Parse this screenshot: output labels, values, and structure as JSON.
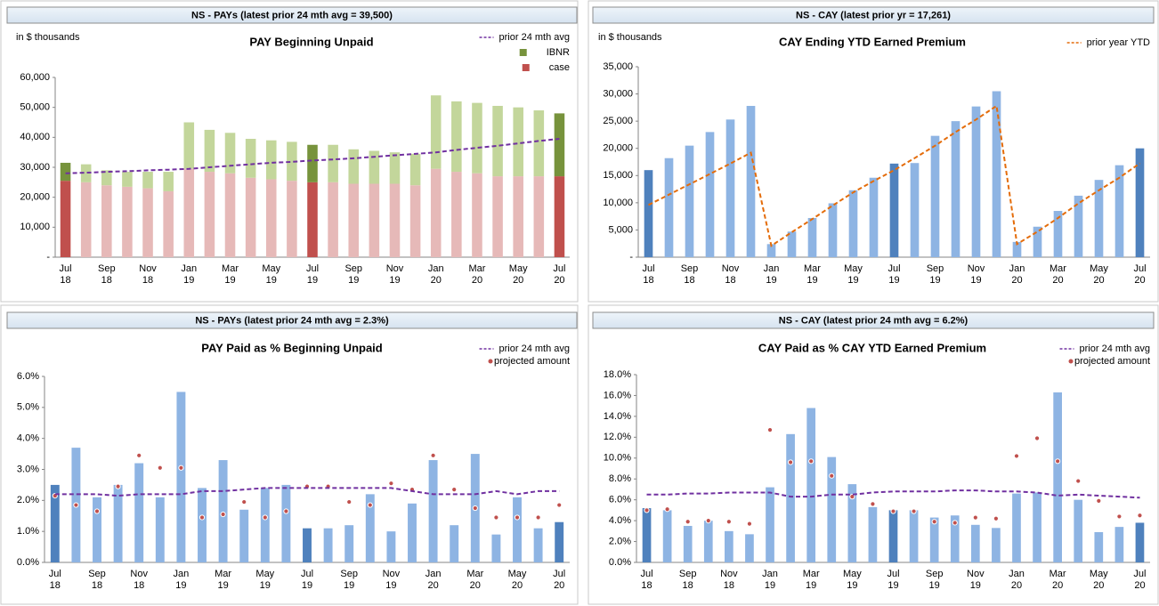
{
  "chart_data": [
    {
      "type": "bar",
      "stacked": true,
      "header": "NS - PAYs (latest prior 24 mth avg = 39,500)",
      "title": "PAY Beginning Unpaid",
      "unit_label": "in $ thousands",
      "categories": [
        "Jul 18",
        null,
        "Sep 18",
        null,
        "Nov 18",
        null,
        "Jan 19",
        null,
        "Mar 19",
        null,
        "May 19",
        null,
        "Jul 19",
        null,
        "Sep 19",
        null,
        "Nov 19",
        null,
        "Jan 20",
        null,
        "Mar 20",
        null,
        "May 20",
        null,
        "Jul 20"
      ],
      "highlight": [
        0,
        12,
        24
      ],
      "series": [
        {
          "name": "case",
          "type": "bar",
          "color": "#e6b9b8",
          "highlight_color": "#c0504d",
          "values": [
            25500,
            25000,
            24000,
            23500,
            23000,
            22000,
            29500,
            28500,
            28000,
            26500,
            26000,
            25500,
            25000,
            25000,
            24500,
            24500,
            24500,
            24000,
            29500,
            28500,
            28000,
            27000,
            27000,
            27000,
            27000
          ]
        },
        {
          "name": "IBNR",
          "type": "bar",
          "color": "#c3d69b",
          "highlight_color": "#77933c",
          "values": [
            6000,
            6000,
            5000,
            5000,
            5500,
            6500,
            15500,
            14000,
            13500,
            13000,
            13000,
            13000,
            12500,
            12500,
            11500,
            11000,
            10500,
            10500,
            24500,
            23500,
            23500,
            23500,
            23000,
            22000,
            21000
          ]
        },
        {
          "name": "prior 24 mth avg",
          "type": "line",
          "color": "#7030a0",
          "values": [
            28000,
            28200,
            28500,
            28700,
            29000,
            29200,
            29500,
            30000,
            30500,
            31000,
            31500,
            31800,
            32300,
            32600,
            33000,
            33500,
            34000,
            34500,
            35000,
            35800,
            36500,
            37200,
            38000,
            38800,
            39500
          ]
        }
      ],
      "ylim": [
        0,
        60000
      ],
      "yticks": [
        {
          "value": 0,
          "label": "-"
        },
        {
          "value": 10000,
          "label": "10,000"
        },
        {
          "value": 20000,
          "label": "20,000"
        },
        {
          "value": 30000,
          "label": "30,000"
        },
        {
          "value": 40000,
          "label": "40,000"
        },
        {
          "value": 50000,
          "label": "50,000"
        },
        {
          "value": 60000,
          "label": "60,000"
        }
      ],
      "grid": false,
      "legend": "upper right"
    },
    {
      "type": "bar",
      "header": "NS - CAY (latest prior yr = 17,261)",
      "title": "CAY Ending YTD Earned Premium",
      "unit_label": "in $ thousands",
      "categories": [
        "Jul 18",
        null,
        "Sep 18",
        null,
        "Nov 18",
        null,
        "Jan 19",
        null,
        "Mar 19",
        null,
        "May 19",
        null,
        "Jul 19",
        null,
        "Sep 19",
        null,
        "Nov 19",
        null,
        "Jan 20",
        null,
        "Mar 20",
        null,
        "May 20",
        null,
        "Jul 20"
      ],
      "highlight": [
        0,
        12,
        24
      ],
      "series": [
        {
          "type": "bar",
          "color": "#8eb4e3",
          "highlight_color": "#4f81bd",
          "values": [
            16000,
            18200,
            20500,
            23000,
            25300,
            27800,
            2400,
            4700,
            7200,
            9900,
            12300,
            14600,
            17200,
            17300,
            22300,
            25000,
            27700,
            30500,
            2800,
            5600,
            8500,
            11300,
            14200,
            16900,
            20000
          ]
        },
        {
          "name": "prior year YTD",
          "type": "line",
          "color": "#e46c0a",
          "values": [
            9600,
            11500,
            13400,
            15300,
            17200,
            19200,
            2100,
            4600,
            7000,
            9500,
            11900,
            14000,
            16000,
            18200,
            20500,
            23000,
            25300,
            27800,
            2400,
            4700,
            7200,
            9900,
            12300,
            14600,
            17261
          ]
        }
      ],
      "ylim": [
        0,
        35000
      ],
      "yticks": [
        {
          "value": 0,
          "label": "-"
        },
        {
          "value": 5000,
          "label": "5,000"
        },
        {
          "value": 10000,
          "label": "10,000"
        },
        {
          "value": 15000,
          "label": "15,000"
        },
        {
          "value": 20000,
          "label": "20,000"
        },
        {
          "value": 25000,
          "label": "25,000"
        },
        {
          "value": 30000,
          "label": "30,000"
        },
        {
          "value": 35000,
          "label": "35,000"
        }
      ],
      "grid": false,
      "legend": "upper right"
    },
    {
      "type": "bar",
      "header": "NS - PAYs (latest prior 24 mth avg = 2.3%)",
      "title": "PAY Paid as % Beginning Unpaid",
      "categories": [
        "Jul 18",
        null,
        "Sep 18",
        null,
        "Nov 18",
        null,
        "Jan 19",
        null,
        "Mar 19",
        null,
        "May 19",
        null,
        "Jul 19",
        null,
        "Sep 19",
        null,
        "Nov 19",
        null,
        "Jan 20",
        null,
        "Mar 20",
        null,
        "May 20",
        null,
        "Jul 20"
      ],
      "highlight": [
        0,
        12,
        24
      ],
      "series": [
        {
          "type": "bar",
          "color": "#8eb4e3",
          "highlight_color": "#4f81bd",
          "values": [
            2.5,
            3.7,
            2.1,
            2.5,
            3.2,
            2.1,
            5.5,
            2.4,
            3.3,
            1.7,
            2.4,
            2.5,
            1.1,
            1.1,
            1.2,
            2.2,
            1.0,
            1.9,
            3.3,
            1.2,
            3.5,
            0.9,
            2.1,
            1.1,
            1.3
          ]
        },
        {
          "name": "projected amount",
          "type": "scatter",
          "color": "#c0504d",
          "values": [
            2.15,
            1.85,
            1.65,
            2.45,
            3.45,
            3.05,
            3.05,
            1.45,
            1.55,
            1.95,
            1.45,
            1.65,
            2.45,
            2.45,
            1.95,
            1.85,
            2.55,
            2.35,
            3.45,
            2.35,
            1.75,
            1.45,
            1.45,
            1.45,
            1.85
          ]
        },
        {
          "name": "prior 24 mth avg",
          "type": "line",
          "color": "#7030a0",
          "values": [
            2.2,
            2.2,
            2.2,
            2.15,
            2.2,
            2.2,
            2.2,
            2.3,
            2.3,
            2.35,
            2.4,
            2.4,
            2.4,
            2.4,
            2.4,
            2.4,
            2.4,
            2.3,
            2.2,
            2.2,
            2.2,
            2.3,
            2.2,
            2.3,
            2.3
          ]
        }
      ],
      "ylim": [
        0,
        6
      ],
      "yticks": [
        {
          "value": 0,
          "label": "0.0%"
        },
        {
          "value": 1,
          "label": "1.0%"
        },
        {
          "value": 2,
          "label": "2.0%"
        },
        {
          "value": 3,
          "label": "3.0%"
        },
        {
          "value": 4,
          "label": "4.0%"
        },
        {
          "value": 5,
          "label": "5.0%"
        },
        {
          "value": 6,
          "label": "6.0%"
        }
      ],
      "grid": false,
      "legend": "upper right"
    },
    {
      "type": "bar",
      "header": "NS - CAY (latest prior 24 mth avg = 6.2%)",
      "title": "CAY Paid as % CAY YTD Earned Premium",
      "categories": [
        "Jul 18",
        null,
        "Sep 18",
        null,
        "Nov 18",
        null,
        "Jan 19",
        null,
        "Mar 19",
        null,
        "May 19",
        null,
        "Jul 19",
        null,
        "Sep 19",
        null,
        "Nov 19",
        null,
        "Jan 20",
        null,
        "Mar 20",
        null,
        "May 20",
        null,
        "Jul 20"
      ],
      "highlight": [
        0,
        12,
        24
      ],
      "series": [
        {
          "type": "bar",
          "color": "#8eb4e3",
          "highlight_color": "#4f81bd",
          "values": [
            5.2,
            5.0,
            3.5,
            4.0,
            3.0,
            2.7,
            7.2,
            12.3,
            14.8,
            10.1,
            7.5,
            5.3,
            5.0,
            5.0,
            4.3,
            4.5,
            3.6,
            3.3,
            6.6,
            6.7,
            16.3,
            6.0,
            2.9,
            3.4,
            3.8
          ]
        },
        {
          "name": "projected amount",
          "type": "scatter",
          "color": "#c0504d",
          "values": [
            5.0,
            5.1,
            3.9,
            4.0,
            3.9,
            3.7,
            12.7,
            9.6,
            9.7,
            8.3,
            6.3,
            5.6,
            4.9,
            4.9,
            3.9,
            3.8,
            4.3,
            4.2,
            10.2,
            11.9,
            9.7,
            7.8,
            5.9,
            4.4,
            4.5
          ]
        },
        {
          "name": "prior 24 mth avg",
          "type": "line",
          "color": "#7030a0",
          "values": [
            6.5,
            6.5,
            6.6,
            6.6,
            6.7,
            6.7,
            6.7,
            6.3,
            6.3,
            6.5,
            6.5,
            6.7,
            6.8,
            6.8,
            6.8,
            6.9,
            6.9,
            6.8,
            6.8,
            6.7,
            6.4,
            6.5,
            6.4,
            6.3,
            6.2
          ]
        }
      ],
      "ylim": [
        0,
        18
      ],
      "yticks": [
        {
          "value": 0,
          "label": "0.0%"
        },
        {
          "value": 2,
          "label": "2.0%"
        },
        {
          "value": 4,
          "label": "4.0%"
        },
        {
          "value": 6,
          "label": "6.0%"
        },
        {
          "value": 8,
          "label": "8.0%"
        },
        {
          "value": 10,
          "label": "10.0%"
        },
        {
          "value": 12,
          "label": "12.0%"
        },
        {
          "value": 14,
          "label": "14.0%"
        },
        {
          "value": 16,
          "label": "16.0%"
        },
        {
          "value": 18,
          "label": "18.0%"
        }
      ],
      "grid": false,
      "legend": "upper right"
    }
  ]
}
